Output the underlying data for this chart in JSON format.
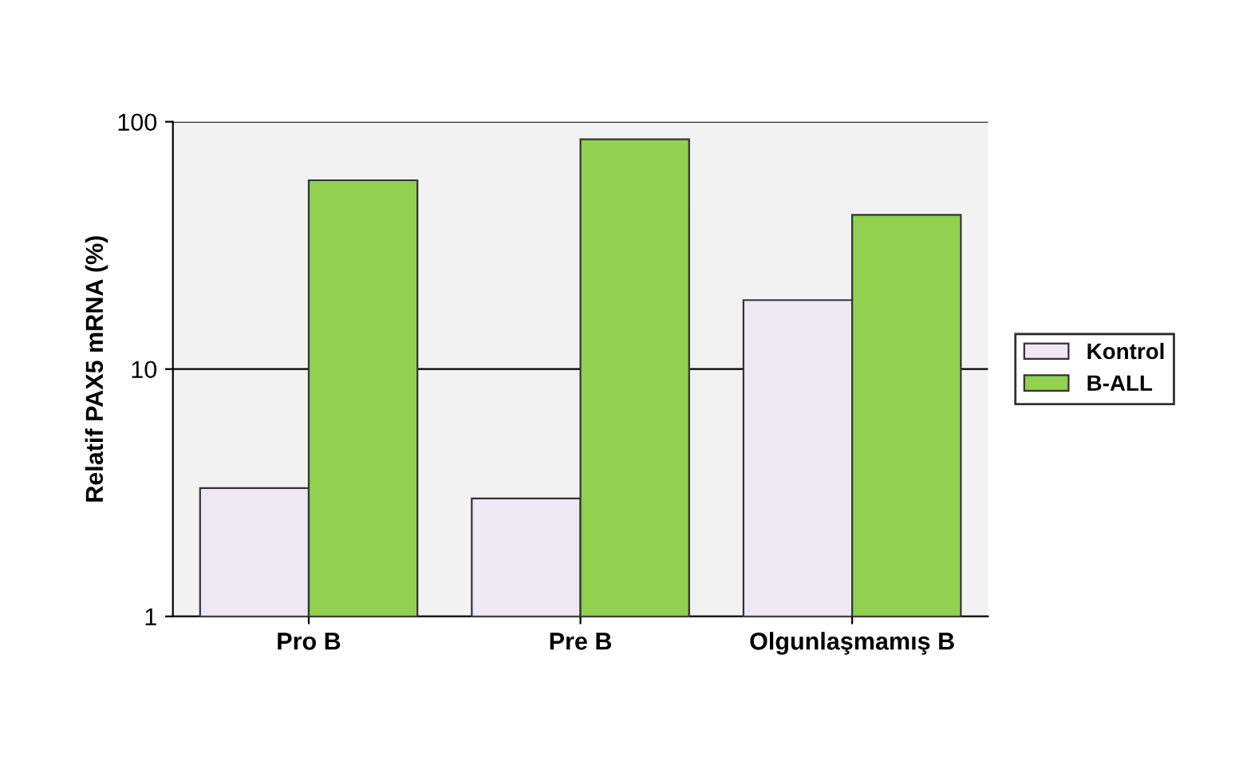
{
  "chart_data": {
    "type": "bar",
    "ylabel": "Relatif PAX5 mRNA (%)",
    "categories": [
      "Pro B",
      "Pre B",
      "Olgunlaşmamış B"
    ],
    "series": [
      {
        "name": "Kontrol",
        "color": "#eee8f5",
        "values": [
          3.3,
          3.0,
          19
        ]
      },
      {
        "name": "B-ALL",
        "color": "#92d050",
        "values": [
          58,
          85,
          42
        ]
      }
    ],
    "log": "y",
    "ylim": [
      1,
      100
    ],
    "yticks": [
      1,
      10,
      100
    ],
    "grid": "y",
    "legend": "right"
  }
}
